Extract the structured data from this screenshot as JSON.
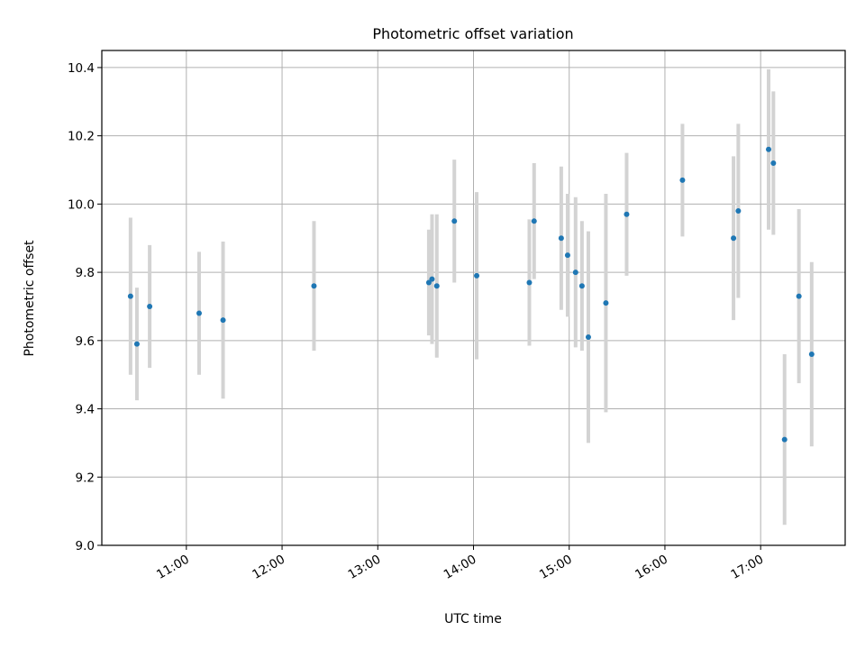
{
  "chart_data": {
    "type": "scatter",
    "title": "Photometric offset variation",
    "xlabel": "UTC time",
    "ylabel": "Photometric offset",
    "ylim": [
      9.0,
      10.45
    ],
    "xlim": [
      "10:07",
      "17:53"
    ],
    "grid": true,
    "x_ticks": [
      "11:00",
      "12:00",
      "13:00",
      "14:00",
      "15:00",
      "16:00",
      "17:00"
    ],
    "y_ticks": [
      "9.0",
      "9.2",
      "9.4",
      "9.6",
      "9.8",
      "10.0",
      "10.2",
      "10.4"
    ],
    "colors": {
      "point": "#1f77b4",
      "errorbar": "#d3d3d3",
      "grid": "#b0b0b0"
    },
    "series": [
      {
        "points": [
          {
            "x": "10:25",
            "y": 9.73,
            "err": 0.23
          },
          {
            "x": "10:29",
            "y": 9.59,
            "err": 0.165
          },
          {
            "x": "10:37",
            "y": 9.7,
            "err": 0.18
          },
          {
            "x": "11:08",
            "y": 9.68,
            "err": 0.18
          },
          {
            "x": "11:23",
            "y": 9.66,
            "err": 0.23
          },
          {
            "x": "12:20",
            "y": 9.76,
            "err": 0.19
          },
          {
            "x": "13:32",
            "y": 9.77,
            "err": 0.155
          },
          {
            "x": "13:34",
            "y": 9.78,
            "err": 0.19
          },
          {
            "x": "13:37",
            "y": 9.76,
            "err": 0.21
          },
          {
            "x": "13:48",
            "y": 9.95,
            "err": 0.18
          },
          {
            "x": "14:02",
            "y": 9.79,
            "err": 0.245
          },
          {
            "x": "14:35",
            "y": 9.77,
            "err": 0.185
          },
          {
            "x": "14:38",
            "y": 9.95,
            "err": 0.17
          },
          {
            "x": "14:55",
            "y": 9.9,
            "err": 0.21
          },
          {
            "x": "14:59",
            "y": 9.85,
            "err": 0.18
          },
          {
            "x": "15:04",
            "y": 9.8,
            "err": 0.22
          },
          {
            "x": "15:08",
            "y": 9.76,
            "err": 0.19
          },
          {
            "x": "15:12",
            "y": 9.61,
            "err": 0.31
          },
          {
            "x": "15:23",
            "y": 9.71,
            "err": 0.32
          },
          {
            "x": "15:36",
            "y": 9.97,
            "err": 0.18
          },
          {
            "x": "16:11",
            "y": 10.07,
            "err": 0.165
          },
          {
            "x": "16:43",
            "y": 9.9,
            "err": 0.24
          },
          {
            "x": "16:46",
            "y": 9.98,
            "err": 0.255
          },
          {
            "x": "17:05",
            "y": 10.16,
            "err": 0.235
          },
          {
            "x": "17:08",
            "y": 10.12,
            "err": 0.21
          },
          {
            "x": "17:15",
            "y": 9.31,
            "err": 0.25
          },
          {
            "x": "17:24",
            "y": 9.73,
            "err": 0.255
          },
          {
            "x": "17:32",
            "y": 9.56,
            "err": 0.27
          }
        ]
      }
    ]
  }
}
